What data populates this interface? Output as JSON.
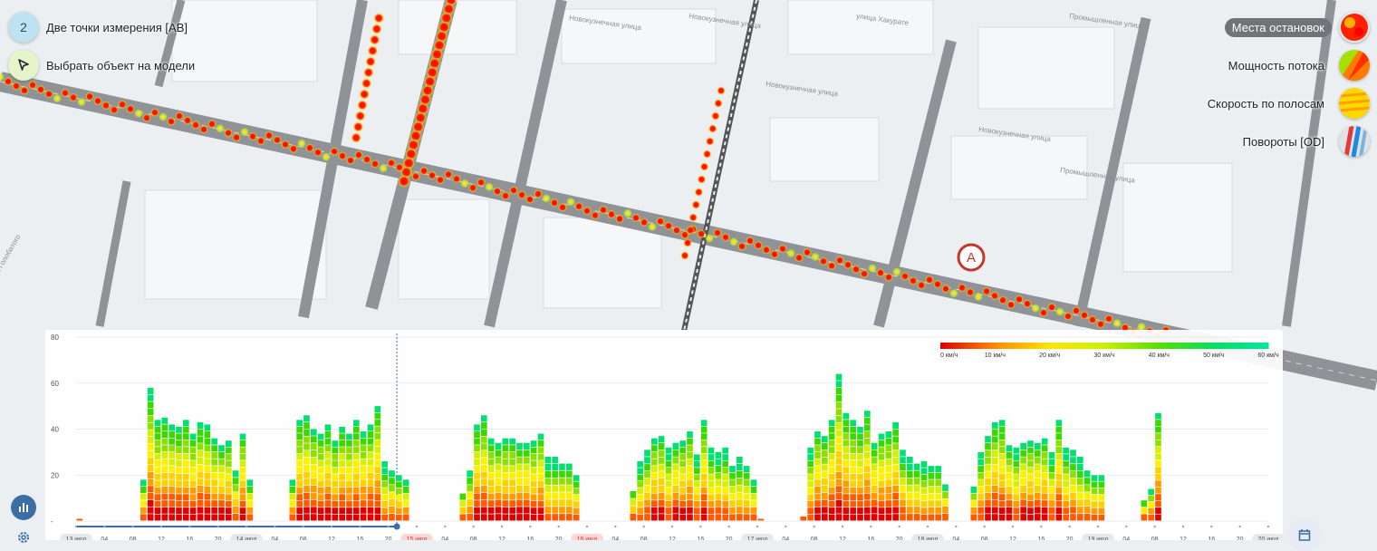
{
  "tools": {
    "measure_index": "2",
    "measure_label": "Две точки измерения [АВ]",
    "select_label": "Выбрать объект на модели"
  },
  "layers": [
    {
      "label": "Места остановок",
      "active": true
    },
    {
      "label": "Мощность потока",
      "active": false
    },
    {
      "label": "Скорость по полосам",
      "active": false
    },
    {
      "label": "Повороты [OD]",
      "active": false
    }
  ],
  "map": {
    "streets": [
      "Новокузнечная улица",
      "Новокузнечная улица",
      "Новокузнечная улица",
      "Новокузнечная улица",
      "Промышленная улица",
      "улица Хакурате",
      "Промышленная улица",
      "улица Голобатого"
    ],
    "marker": "A"
  },
  "chart_data": {
    "type": "bar",
    "stacked": true,
    "ylim": [
      0,
      80
    ],
    "yticks": [
      "80",
      "60",
      "40",
      "20",
      "-"
    ],
    "legend": {
      "labels": [
        "0 км/ч",
        "10 км/ч",
        "20 км/ч",
        "30 км/ч",
        "40 км/ч",
        "50 км/ч",
        "60 км/ч"
      ],
      "colors": [
        "#e00000",
        "#ff8a00",
        "#ffe600",
        "#c8f000",
        "#55e000",
        "#00e060",
        "#00e8a0"
      ]
    },
    "day_groups": [
      {
        "label": "13 июл",
        "values": [
          1,
          18,
          58,
          44,
          45,
          42,
          41,
          44,
          38,
          43,
          42,
          36,
          33,
          35,
          22,
          38,
          18
        ]
      },
      {
        "label": "14 июл",
        "values": [
          18,
          44,
          46,
          40,
          38,
          42,
          35,
          41,
          38,
          44,
          39,
          42,
          50,
          26,
          22,
          20,
          18
        ]
      },
      {
        "label": "15 июл",
        "values": [
          12,
          22,
          42,
          46,
          36,
          34,
          36,
          36,
          34,
          34,
          35,
          38,
          28,
          28,
          25,
          25,
          20
        ]
      },
      {
        "label": "16 июл",
        "values": [
          13,
          26,
          31,
          36,
          37,
          32,
          34,
          35,
          39,
          29,
          44,
          32,
          30,
          32,
          24,
          28,
          24,
          18,
          1
        ]
      },
      {
        "label": "17 июл",
        "values": [
          2,
          32,
          39,
          37,
          44,
          64,
          47,
          44,
          41,
          48,
          34,
          38,
          39,
          43,
          31,
          28,
          25,
          26,
          24,
          24,
          16
        ]
      },
      {
        "label": "18 июл",
        "values": [
          15,
          30,
          37,
          43,
          44,
          33,
          32,
          34,
          35,
          34,
          36,
          30,
          44,
          32,
          31,
          28,
          22,
          20,
          20
        ]
      },
      {
        "label": "19 июл",
        "values": [
          9,
          14,
          47
        ]
      }
    ],
    "x_tick_labels": [
      "13 июл",
      "04",
      "08",
      "12",
      "16",
      "20",
      "14 июл",
      "04",
      "08",
      "12",
      "16",
      "20",
      "15 июл",
      "04",
      "08",
      "12",
      "16",
      "20",
      "16 июл",
      "04",
      "08",
      "12",
      "16",
      "20",
      "17 июл",
      "04",
      "08",
      "12",
      "16",
      "20",
      "18 июл",
      "04",
      "08",
      "12",
      "16",
      "20",
      "19 июл",
      "04",
      "08",
      "12",
      "16",
      "20",
      "20 июл"
    ],
    "highlighted_days": [
      "15 июл",
      "16 июл"
    ]
  }
}
